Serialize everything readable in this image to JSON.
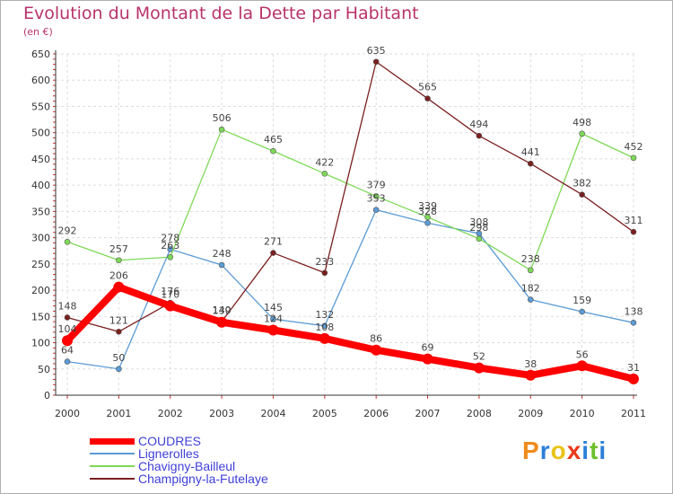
{
  "header": {
    "title": "Evolution du Montant de la Dette par Habitant",
    "subtitle": "(en €)"
  },
  "brand": {
    "name": "Proxiti",
    "letters": [
      {
        "ch": "P",
        "color": "#f08a1a"
      },
      {
        "ch": "r",
        "color": "#2b7fd8"
      },
      {
        "ch": "o",
        "color": "#e8c41a"
      },
      {
        "ch": "x",
        "color": "#e83a1a"
      },
      {
        "ch": "i",
        "color": "#2b7fd8"
      },
      {
        "ch": "t",
        "color": "#6cbf2a"
      },
      {
        "ch": "i",
        "color": "#2b7fd8"
      }
    ]
  },
  "chart_data": {
    "type": "line",
    "x": [
      "2000",
      "2001",
      "2002",
      "2003",
      "2004",
      "2005",
      "2006",
      "2007",
      "2008",
      "2009",
      "2010",
      "2011"
    ],
    "ylim": [
      0,
      650
    ],
    "yticks": [
      0,
      50,
      100,
      150,
      200,
      250,
      300,
      350,
      400,
      450,
      500,
      550,
      600,
      650
    ],
    "grid": true,
    "legend_position": "bottom-left",
    "series": [
      {
        "name": "Lignerolles",
        "color": "#5b9bd5",
        "values": [
          64,
          50,
          278,
          248,
          145,
          132,
          353,
          328,
          308,
          182,
          159,
          138
        ],
        "labels": [
          "64",
          "50",
          "278",
          "248",
          "145",
          "132",
          "353",
          "328",
          "308",
          "182",
          "159",
          "138"
        ]
      },
      {
        "name": "Chavigny-Bailleul",
        "color": "#7ed957",
        "values": [
          292,
          257,
          263,
          506,
          465,
          422,
          379,
          339,
          298,
          238,
          498,
          452
        ],
        "labels": [
          "292",
          "257",
          "263",
          "506",
          "465",
          "422",
          "379",
          "339",
          "298",
          "238",
          "498",
          "452"
        ]
      },
      {
        "name": "Champigny-la-Futelaye",
        "color": "#7a1f1f",
        "values": [
          148,
          121,
          176,
          140,
          271,
          233,
          635,
          565,
          494,
          441,
          382,
          311
        ],
        "labels": [
          "148",
          "121",
          "176",
          "140",
          "271",
          "233",
          "635",
          "565",
          "494",
          "441",
          "382",
          "311"
        ]
      },
      {
        "name": "COUDRES",
        "color": "#ff0000",
        "values": [
          104,
          206,
          170,
          139,
          124,
          108,
          86,
          69,
          52,
          38,
          56,
          31
        ],
        "labels": [
          "104",
          "206",
          "170",
          "139",
          "124",
          "108",
          "86",
          "69",
          "52",
          "38",
          "56",
          "31"
        ]
      }
    ],
    "legend_order": [
      "COUDRES",
      "Lignerolles",
      "Chavigny-Bailleul",
      "Champigny-la-Futelaye"
    ]
  }
}
